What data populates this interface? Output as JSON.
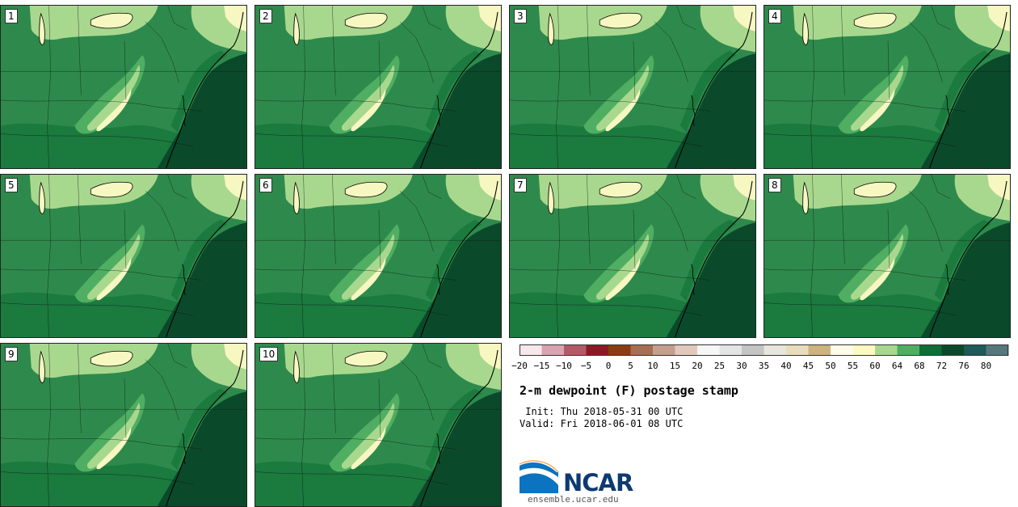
{
  "title": "2-m dewpoint (F) postage stamp",
  "init_line": " Init: Thu 2018-05-31 00 UTC",
  "valid_line": "Valid: Fri 2018-06-01 08 UTC",
  "members": [
    "1",
    "2",
    "3",
    "4",
    "5",
    "6",
    "7",
    "8",
    "9",
    "10"
  ],
  "colorbar": {
    "ticks": [
      "−20",
      "−15",
      "−10",
      "−5",
      "0",
      "5",
      "10",
      "15",
      "20",
      "25",
      "30",
      "35",
      "40",
      "45",
      "50",
      "55",
      "60",
      "64",
      "68",
      "72",
      "76",
      "80"
    ],
    "colors": [
      "#f7e8ec",
      "#d9a3b0",
      "#b35a66",
      "#8b1a24",
      "#8a3c12",
      "#a86e52",
      "#c69e8e",
      "#e3c9bd",
      "#f6f6f6",
      "#e4e4e4",
      "#c4c4c4",
      "#e6e6dd",
      "#e8dcbb",
      "#cdb37d",
      "#fffbeb",
      "#fbfbc0",
      "#a8d88e",
      "#4fae61",
      "#0f6e36",
      "#0a4a2a",
      "#1d5a5a",
      "#55787d"
    ]
  },
  "logo": {
    "name": "NCAR",
    "url": "ensemble.ucar.edu"
  },
  "map_colors": {
    "band_dark": "#0d5e33",
    "band_mid": "#2e8a4c",
    "band_light": "#4fae61",
    "band_pale": "#a8d88e",
    "band_cream": "#f7f7c2",
    "ocean": "#0a4a2a"
  }
}
